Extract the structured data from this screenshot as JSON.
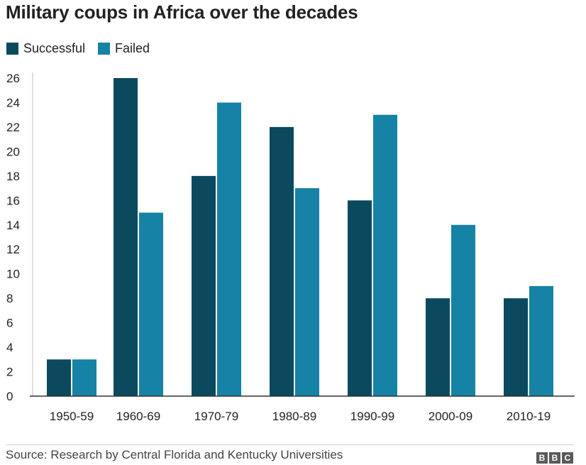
{
  "title": "Military coups in Africa over the decades",
  "legend": [
    {
      "label": "Successful",
      "color": "#0b4a5e"
    },
    {
      "label": "Failed",
      "color": "#1682a5"
    }
  ],
  "chart_data": {
    "type": "bar",
    "title": "Military coups in Africa over the decades",
    "categories": [
      "1950-59",
      "1960-69",
      "1970-79",
      "1980-89",
      "1990-99",
      "2000-09",
      "2010-19"
    ],
    "series": [
      {
        "name": "Successful",
        "color": "#0b4a5e",
        "values": [
          3,
          26,
          18,
          22,
          16,
          8,
          8
        ]
      },
      {
        "name": "Failed",
        "color": "#1682a5",
        "values": [
          3,
          15,
          24,
          17,
          23,
          14,
          9
        ]
      }
    ],
    "ylim": [
      0,
      26
    ],
    "yticks": [
      0,
      2,
      4,
      6,
      8,
      10,
      12,
      14,
      16,
      18,
      20,
      22,
      24,
      26
    ],
    "xlabel": "",
    "ylabel": "",
    "grid": false,
    "legend_position": "top-left"
  },
  "footer": {
    "source": "Source: Research by Central Florida and Kentucky Universities",
    "logo": [
      "B",
      "B",
      "C"
    ]
  }
}
